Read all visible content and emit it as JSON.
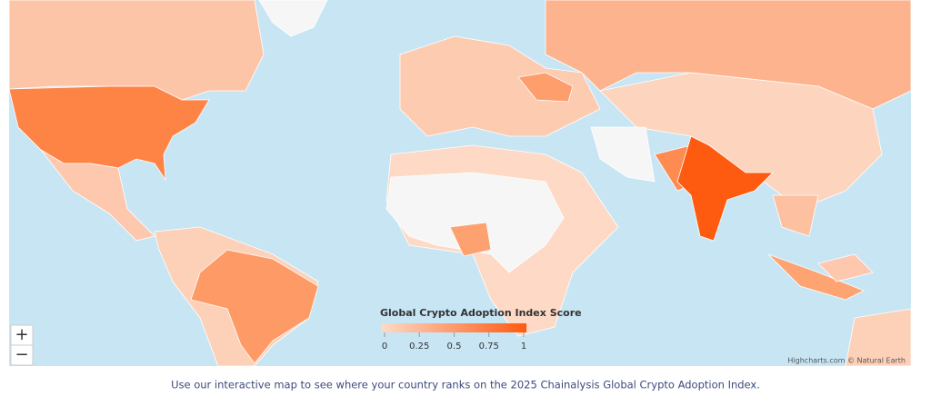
{
  "map": {
    "legend": {
      "title": "Global Crypto Adoption Index Score",
      "range": [
        0,
        1
      ],
      "ticks": [
        0,
        0.25,
        0.5,
        0.75,
        1
      ],
      "colors": [
        "#fdd9c6",
        "#fe5a10"
      ]
    },
    "credits": "Highcharts.com © Natural Earth",
    "zoom": {
      "in": "+",
      "out": "−"
    }
  },
  "caption": "Use our interactive map to see where your country ranks on the 2025 Chainalysis Global Crypto Adoption Index."
}
